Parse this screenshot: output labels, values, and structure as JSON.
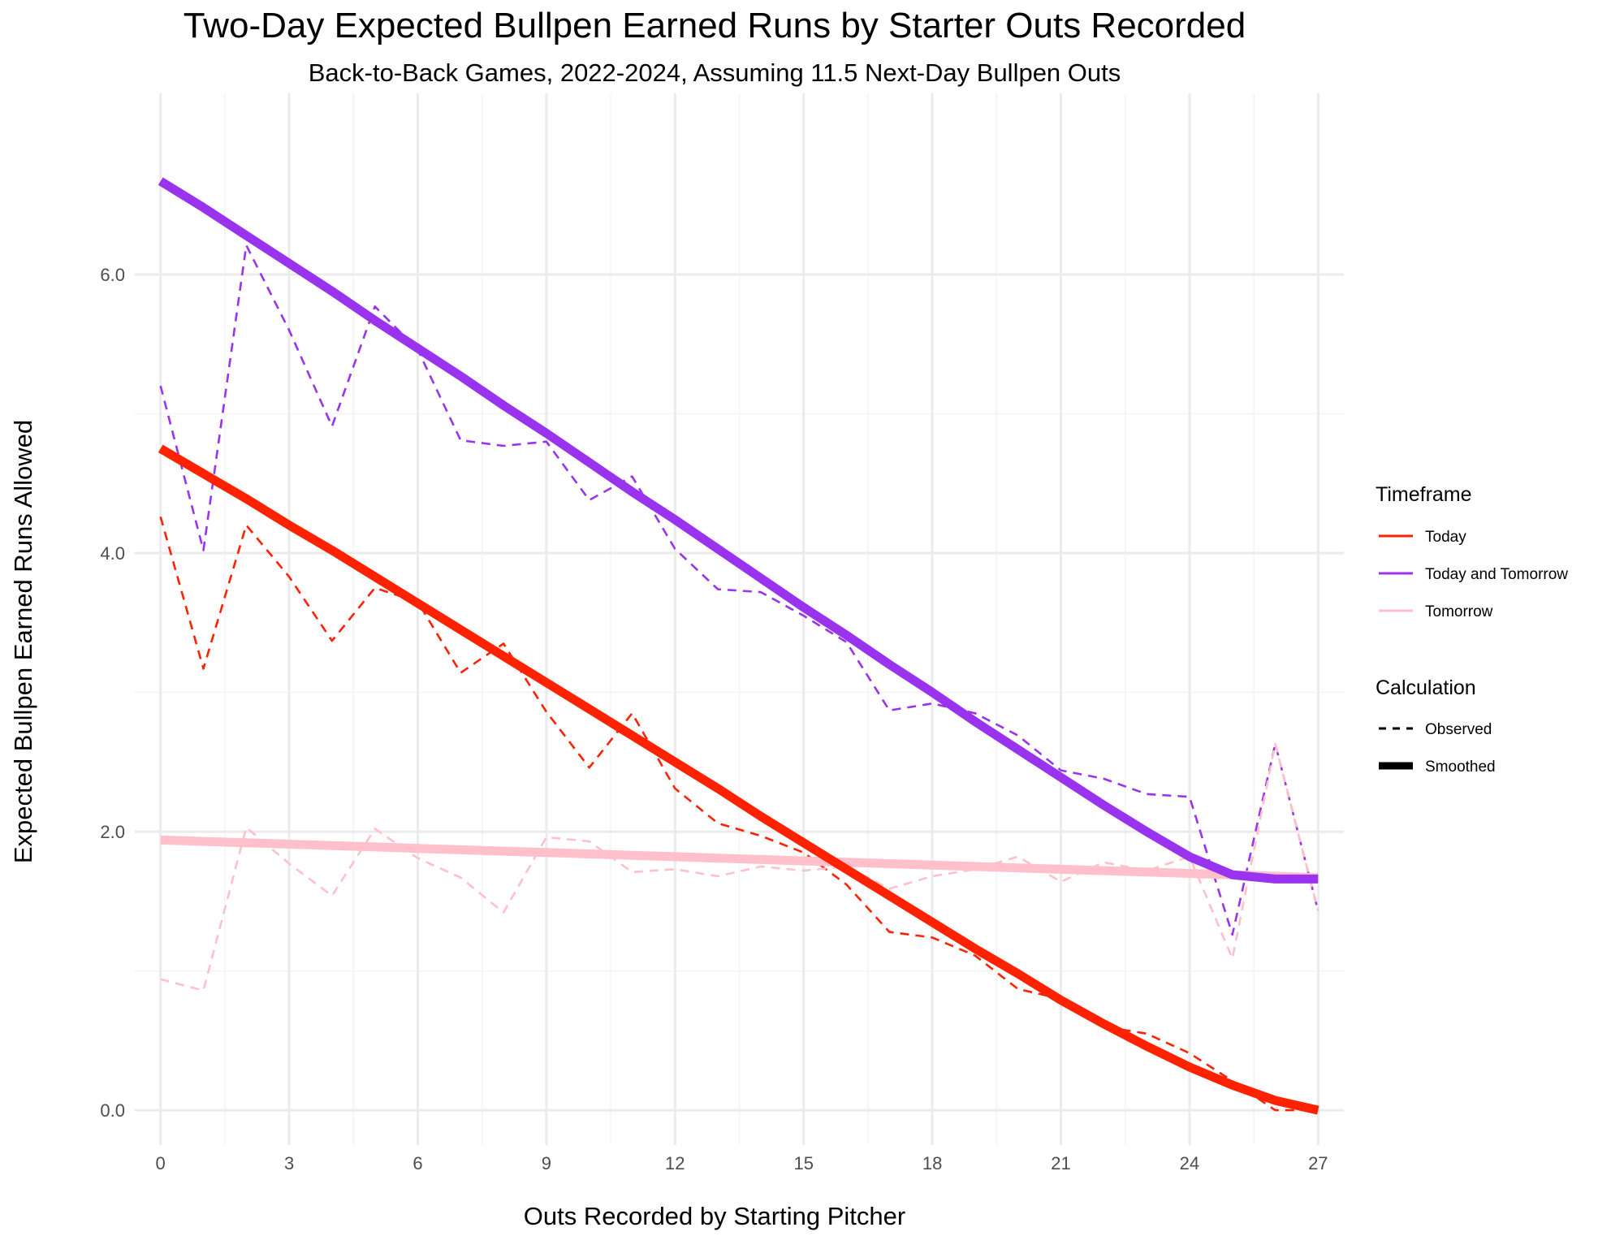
{
  "chart_data": {
    "type": "line",
    "title": "Two-Day Expected Bullpen Earned Runs by Starter Outs Recorded",
    "subtitle": "Back-to-Back Games, 2022-2024, Assuming 11.5 Next-Day Bullpen Outs",
    "xlabel": "Outs Recorded by Starting Pitcher",
    "ylabel": "Expected Bullpen Earned Runs Allowed",
    "xlim": [
      -0.6,
      27.6
    ],
    "ylim": [
      -0.25,
      7.3
    ],
    "xticks": [
      0,
      3,
      6,
      9,
      12,
      15,
      18,
      21,
      24,
      27
    ],
    "xtick_labels": [
      "0",
      "3",
      "6",
      "9",
      "12",
      "15",
      "18",
      "21",
      "24",
      "27"
    ],
    "yticks": [
      0,
      2,
      4,
      6
    ],
    "ytick_labels": [
      "0.0",
      "2.0",
      "4.0",
      "6.0"
    ],
    "x": [
      0,
      1,
      2,
      3,
      4,
      5,
      6,
      7,
      8,
      9,
      10,
      11,
      12,
      13,
      14,
      15,
      16,
      17,
      18,
      19,
      20,
      21,
      22,
      23,
      24,
      25,
      26,
      27
    ],
    "grid": true,
    "legend_position": "right",
    "legend": {
      "timeframe_title": "Timeframe",
      "timeframe_items": [
        {
          "label": "Today",
          "color": "#ff2200"
        },
        {
          "label": "Today and Tomorrow",
          "color": "#9933ee"
        },
        {
          "label": "Tomorrow",
          "color": "#ffc0cb"
        }
      ],
      "calculation_title": "Calculation",
      "calculation_items": [
        {
          "label": "Observed",
          "style": "dashed"
        },
        {
          "label": "Smoothed",
          "style": "solid"
        }
      ]
    },
    "series": [
      {
        "name": "Today",
        "calculation": "Observed",
        "color": "#ff2200",
        "values": [
          4.26,
          3.17,
          4.2,
          3.83,
          3.37,
          3.75,
          3.65,
          3.14,
          3.35,
          2.86,
          2.46,
          2.85,
          2.31,
          2.06,
          1.97,
          1.85,
          1.62,
          1.28,
          1.24,
          1.11,
          0.87,
          0.8,
          0.6,
          0.55,
          0.41,
          0.21,
          0.0,
          0.0
        ]
      },
      {
        "name": "Today and Tomorrow",
        "calculation": "Observed",
        "color": "#9933ee",
        "values": [
          5.2,
          4.02,
          6.21,
          5.6,
          4.91,
          5.77,
          5.46,
          4.81,
          4.77,
          4.8,
          4.38,
          4.55,
          4.03,
          3.74,
          3.72,
          3.55,
          3.36,
          2.87,
          2.92,
          2.85,
          2.69,
          2.44,
          2.38,
          2.27,
          2.25,
          1.26,
          2.63,
          1.43
        ]
      },
      {
        "name": "Tomorrow",
        "calculation": "Observed",
        "color": "#ffc0cb",
        "values": [
          0.94,
          0.86,
          2.03,
          1.77,
          1.54,
          2.02,
          1.81,
          1.67,
          1.42,
          1.96,
          1.93,
          1.71,
          1.73,
          1.68,
          1.75,
          1.72,
          1.75,
          1.59,
          1.68,
          1.73,
          1.82,
          1.64,
          1.78,
          1.72,
          1.82,
          1.09,
          2.63,
          1.43
        ]
      },
      {
        "name": "Today",
        "calculation": "Smoothed",
        "color": "#ff2200",
        "values": [
          4.75,
          4.57,
          4.39,
          4.2,
          4.02,
          3.83,
          3.64,
          3.45,
          3.26,
          3.07,
          2.88,
          2.69,
          2.5,
          2.31,
          2.11,
          1.92,
          1.73,
          1.54,
          1.35,
          1.16,
          0.98,
          0.79,
          0.62,
          0.46,
          0.31,
          0.18,
          0.07,
          0.0
        ]
      },
      {
        "name": "Today and Tomorrow",
        "calculation": "Smoothed",
        "color": "#9933ee",
        "values": [
          6.67,
          6.48,
          6.28,
          6.08,
          5.88,
          5.67,
          5.47,
          5.27,
          5.06,
          4.86,
          4.65,
          4.44,
          4.24,
          4.03,
          3.82,
          3.61,
          3.41,
          3.2,
          3.0,
          2.79,
          2.59,
          2.39,
          2.19,
          2.0,
          1.82,
          1.69,
          1.66,
          1.66
        ]
      },
      {
        "name": "Tomorrow",
        "calculation": "Smoothed",
        "color": "#ffc0cb",
        "values": [
          1.94,
          1.93,
          1.92,
          1.91,
          1.9,
          1.89,
          1.88,
          1.87,
          1.86,
          1.85,
          1.84,
          1.83,
          1.82,
          1.81,
          1.8,
          1.79,
          1.78,
          1.77,
          1.76,
          1.75,
          1.74,
          1.73,
          1.72,
          1.71,
          1.7,
          1.69,
          1.68,
          1.67
        ]
      }
    ]
  }
}
